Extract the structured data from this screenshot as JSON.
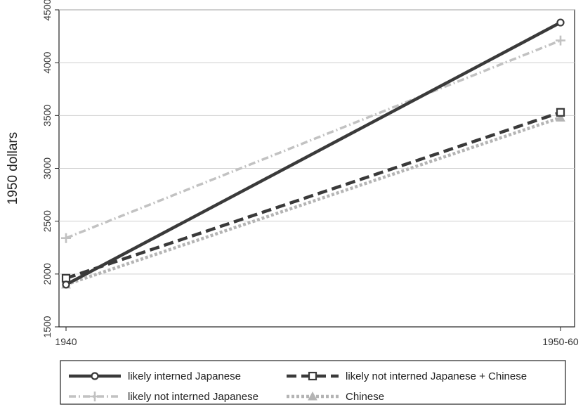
{
  "chart_data": {
    "type": "line",
    "title": "",
    "xlabel": "",
    "ylabel": "1950 dollars",
    "categories": [
      "1940",
      "1950-60"
    ],
    "ylim": [
      1500,
      4500
    ],
    "yticks": [
      1500,
      2000,
      2500,
      3000,
      3500,
      4000,
      4500
    ],
    "grid": true,
    "legend_position": "bottom",
    "series": [
      {
        "name": "likely interned Japanese",
        "values": [
          1900,
          4380
        ],
        "color": "#3a3a3a",
        "line_style": "solid",
        "marker": "circle-icon"
      },
      {
        "name": "likely not interned Japanese + Chinese",
        "values": [
          1960,
          3530
        ],
        "color": "#3a3a3a",
        "line_style": "dashed",
        "marker": "square-icon"
      },
      {
        "name": "likely not interned Japanese",
        "values": [
          2340,
          4210
        ],
        "color": "#c2c2c2",
        "line_style": "dash-dot",
        "marker": "plus-icon"
      },
      {
        "name": "Chinese",
        "values": [
          1900,
          3480
        ],
        "color": "#b4b4b4",
        "line_style": "dotted",
        "marker": "triangle-icon"
      }
    ]
  }
}
